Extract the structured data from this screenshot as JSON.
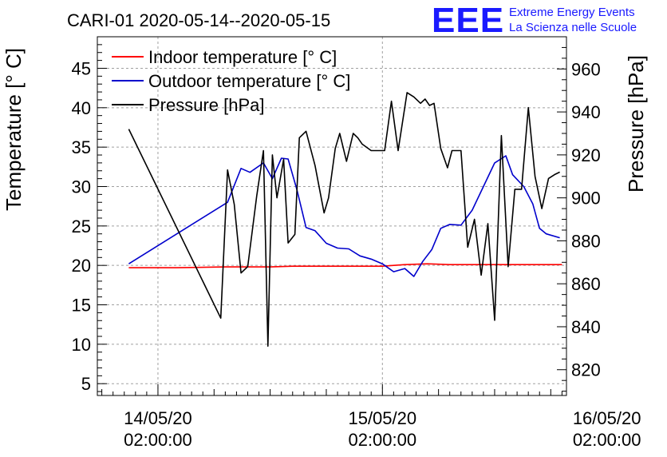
{
  "chart_data": {
    "type": "line",
    "title": "CARI-01 2020-05-14--2020-05-15",
    "ylabel_left": "Temperature [° C]",
    "ylabel_right": "Pressure [hPa]",
    "x_range_days": [
      -0.27,
      1.82
    ],
    "ylim_left": [
      3.5,
      49
    ],
    "ylim_right": [
      808,
      975
    ],
    "grid": true,
    "legend_position": "top-left",
    "x_ticks": [
      {
        "value": 0,
        "line1": "14/05/20",
        "line2": "02:00:00"
      },
      {
        "value": 1,
        "line1": "15/05/20",
        "line2": "02:00:00"
      },
      {
        "value": 2,
        "line1": "16/05/20",
        "line2": "02:00:00"
      }
    ],
    "y_ticks_left": [
      "5",
      "10",
      "15",
      "20",
      "25",
      "30",
      "35",
      "40",
      "45"
    ],
    "y_ticks_right": [
      "820",
      "840",
      "860",
      "880",
      "900",
      "920",
      "940",
      "960"
    ],
    "series": [
      {
        "name": "Indoor temperature [° C]",
        "axis": "left",
        "color": "#ff0000",
        "x": [
          -0.13,
          0.08,
          0.3,
          0.5,
          0.6,
          0.8,
          1.0,
          1.1,
          1.2,
          1.3,
          1.4,
          1.5,
          1.6,
          1.7,
          1.8
        ],
        "y": [
          19.7,
          19.7,
          19.8,
          19.8,
          19.9,
          19.9,
          19.9,
          20.1,
          20.2,
          20.1,
          20.1,
          20.1,
          20.1,
          20.1,
          20.1
        ]
      },
      {
        "name": "Outdoor temperature [° C]",
        "axis": "left",
        "color": "#0000cc",
        "x": [
          -0.13,
          0.31,
          0.37,
          0.41,
          0.47,
          0.51,
          0.55,
          0.58,
          0.62,
          0.66,
          0.7,
          0.75,
          0.8,
          0.85,
          0.9,
          0.95,
          1.0,
          1.05,
          1.1,
          1.14,
          1.18,
          1.22,
          1.26,
          1.3,
          1.35,
          1.4,
          1.45,
          1.5,
          1.55,
          1.58,
          1.63,
          1.67,
          1.7,
          1.73,
          1.79
        ],
        "y": [
          20.2,
          28.0,
          32.3,
          31.8,
          33.0,
          31.0,
          33.6,
          33.5,
          29.5,
          24.8,
          24.4,
          22.8,
          22.2,
          22.1,
          21.2,
          20.8,
          20.2,
          19.2,
          19.6,
          18.6,
          20.5,
          22.0,
          24.7,
          25.2,
          25.1,
          27.0,
          30.0,
          33.0,
          33.9,
          31.5,
          30.0,
          27.8,
          24.7,
          24.0,
          23.5
        ]
      },
      {
        "name": "Pressure [hPa]",
        "axis": "right",
        "color": "#000000",
        "x": [
          -0.13,
          0.28,
          0.31,
          0.34,
          0.37,
          0.4,
          0.44,
          0.47,
          0.49,
          0.51,
          0.53,
          0.56,
          0.58,
          0.61,
          0.63,
          0.66,
          0.7,
          0.74,
          0.76,
          0.79,
          0.81,
          0.84,
          0.87,
          0.89,
          0.91,
          0.95,
          0.98,
          1.01,
          1.04,
          1.07,
          1.11,
          1.14,
          1.17,
          1.19,
          1.21,
          1.23,
          1.26,
          1.29,
          1.31,
          1.35,
          1.38,
          1.41,
          1.44,
          1.47,
          1.5,
          1.53,
          1.56,
          1.59,
          1.62,
          1.65,
          1.68,
          1.71,
          1.74,
          1.77,
          1.79
        ],
        "y": [
          932,
          844,
          913,
          897,
          865,
          868,
          901,
          922,
          831,
          920,
          900,
          918,
          879,
          883,
          928,
          931,
          915,
          893,
          900,
          923,
          930,
          917,
          930,
          928,
          925,
          922,
          922,
          922,
          945,
          922,
          949,
          947,
          944,
          946,
          943,
          944,
          923,
          914,
          922,
          922,
          877,
          890,
          864,
          888,
          843,
          929,
          868,
          904,
          904,
          942,
          910,
          895,
          909,
          911,
          912
        ]
      }
    ]
  },
  "logo": {
    "letters": "EEE",
    "line1": "Extreme Energy Events",
    "line2": "La Scienza nelle Scuole"
  }
}
